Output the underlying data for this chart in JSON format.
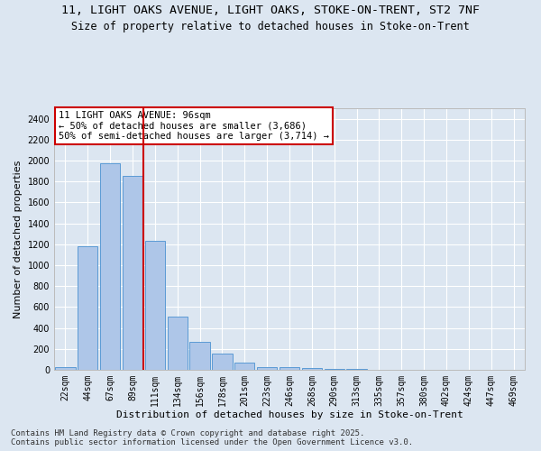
{
  "title_line1": "11, LIGHT OAKS AVENUE, LIGHT OAKS, STOKE-ON-TRENT, ST2 7NF",
  "title_line2": "Size of property relative to detached houses in Stoke-on-Trent",
  "xlabel": "Distribution of detached houses by size in Stoke-on-Trent",
  "ylabel": "Number of detached properties",
  "categories": [
    "22sqm",
    "44sqm",
    "67sqm",
    "89sqm",
    "111sqm",
    "134sqm",
    "156sqm",
    "178sqm",
    "201sqm",
    "223sqm",
    "246sqm",
    "268sqm",
    "290sqm",
    "313sqm",
    "335sqm",
    "357sqm",
    "380sqm",
    "402sqm",
    "424sqm",
    "447sqm",
    "469sqm"
  ],
  "values": [
    30,
    1180,
    1970,
    1850,
    1230,
    510,
    270,
    155,
    70,
    30,
    25,
    17,
    12,
    5,
    0,
    0,
    0,
    0,
    0,
    0,
    0
  ],
  "bar_color": "#aec6e8",
  "bar_edge_color": "#5b9bd5",
  "background_color": "#dce6f1",
  "grid_color": "#ffffff",
  "vline_pos": 3.5,
  "vline_color": "#cc0000",
  "annotation_text": "11 LIGHT OAKS AVENUE: 96sqm\n← 50% of detached houses are smaller (3,686)\n50% of semi-detached houses are larger (3,714) →",
  "annotation_box_color": "#ffffff",
  "annotation_box_edge_color": "#cc0000",
  "annotation_fontsize": 7.5,
  "ylim": [
    0,
    2500
  ],
  "yticks": [
    0,
    200,
    400,
    600,
    800,
    1000,
    1200,
    1400,
    1600,
    1800,
    2000,
    2200,
    2400
  ],
  "footer_line1": "Contains HM Land Registry data © Crown copyright and database right 2025.",
  "footer_line2": "Contains public sector information licensed under the Open Government Licence v3.0.",
  "title_fontsize": 9.5,
  "subtitle_fontsize": 8.5,
  "axis_label_fontsize": 8,
  "tick_fontsize": 7,
  "footer_fontsize": 6.5
}
